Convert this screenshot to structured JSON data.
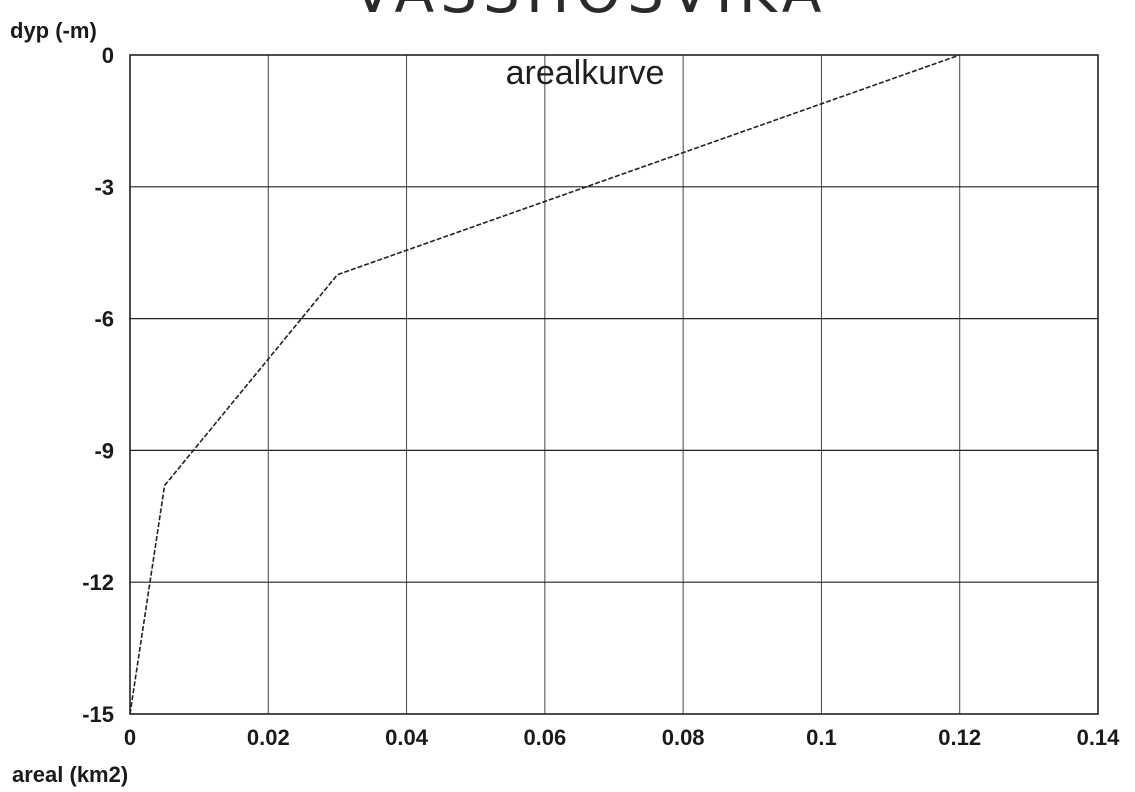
{
  "chart_data": {
    "type": "line",
    "title": "VASSHOSVIKA",
    "subtitle": "arealkurve",
    "xlabel": "areal (km2)",
    "ylabel": "dyp (-m)",
    "xlim": [
      0,
      0.14
    ],
    "ylim": [
      -15,
      0
    ],
    "xticks": [
      0,
      0.02,
      0.04,
      0.06,
      0.08,
      0.1,
      0.12,
      0.14
    ],
    "xtick_labels": [
      "0",
      "0.02",
      "0.04",
      "0.06",
      "0.08",
      "0.1",
      "0.12",
      "0.14"
    ],
    "yticks": [
      0,
      -3,
      -6,
      -9,
      -12,
      -15
    ],
    "ytick_labels": [
      "0",
      "-3",
      "-6",
      "-9",
      "-12",
      "-15"
    ],
    "grid": true,
    "legend": "none",
    "series": [
      {
        "x": [
          0,
          0.005,
          0.03,
          0.12
        ],
        "y": [
          -15,
          -9.8,
          -5,
          0
        ]
      }
    ],
    "colors": {
      "line": "#222222",
      "grid": "#444444",
      "text": "#1a1a1a"
    }
  }
}
